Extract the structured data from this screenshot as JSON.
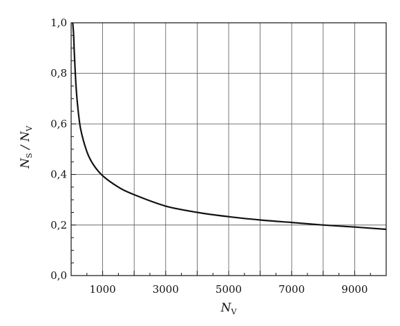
{
  "chart_data": {
    "type": "line",
    "xlabel": "N_V",
    "ylabel": "N_S / N_V",
    "xlabel_parts": {
      "main": "N",
      "sub": "V"
    },
    "ylabel_parts": {
      "num": "N",
      "num_sub": "S",
      "sep": " / ",
      "den": "N",
      "den_sub": "V"
    },
    "xlim": [
      0,
      10000
    ],
    "ylim": [
      0,
      1.0
    ],
    "x_ticks": [
      1000,
      3000,
      5000,
      7000,
      9000
    ],
    "x_tick_labels": [
      "1000",
      "3000",
      "5000",
      "7000",
      "9000"
    ],
    "y_ticks": [
      0,
      0.2,
      0.4,
      0.6,
      0.8,
      1.0
    ],
    "y_tick_labels": [
      "0,0",
      "0,2",
      "0,4",
      "0,6",
      "0,8",
      "1,0"
    ],
    "grid": true,
    "series": [
      {
        "x": [
          50,
          80,
          100,
          150,
          200,
          300,
          500,
          700,
          1000,
          1500,
          2000,
          3000,
          4000,
          5000,
          6000,
          7000,
          8000,
          9000,
          10000
        ],
        "y": [
          1.0,
          0.95,
          0.88,
          0.76,
          0.68,
          0.58,
          0.49,
          0.44,
          0.395,
          0.35,
          0.32,
          0.275,
          0.25,
          0.233,
          0.22,
          0.21,
          0.2,
          0.192,
          0.183
        ]
      }
    ]
  }
}
